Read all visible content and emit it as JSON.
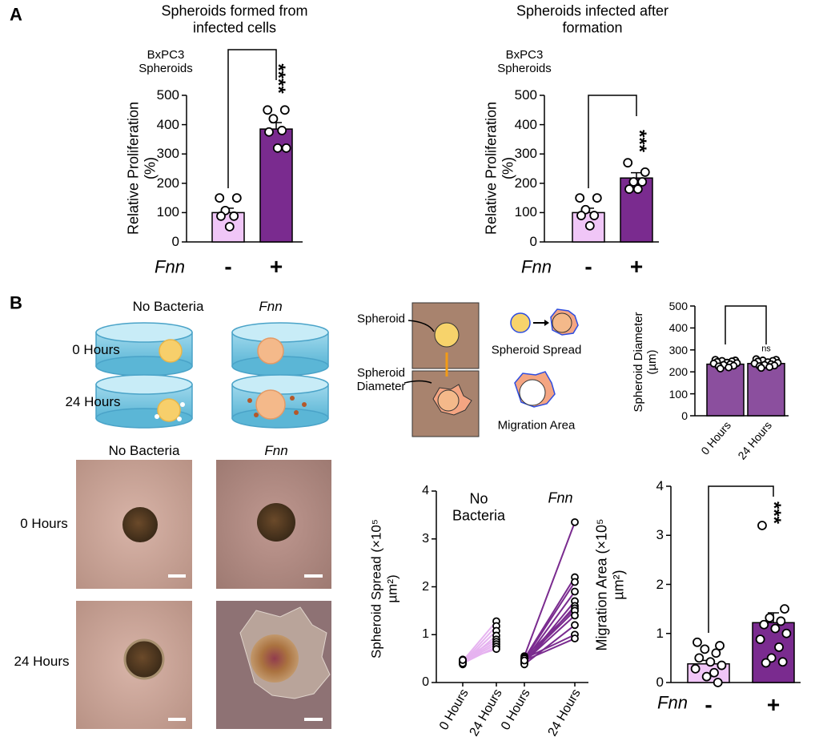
{
  "panel_labels": [
    "A",
    "B"
  ],
  "chart_data": [
    {
      "type": "bar",
      "title": "Spheroids formed from infected cells",
      "annotation": "BxPC3 Spheroids",
      "ylabel": "Relative Proliferation (%)",
      "xlabel": "Fnn",
      "categories": [
        "-",
        "+"
      ],
      "values": [
        100,
        385
      ],
      "errors": [
        15,
        22
      ],
      "colors": [
        "#f0c6f7",
        "#7a2b8f"
      ],
      "points": [
        [
          150,
          150,
          107,
          88,
          88,
          52
        ],
        [
          450,
          450,
          420,
          380,
          375,
          320,
          320
        ]
      ],
      "significance": "****",
      "ylim": [
        0,
        500
      ],
      "yticks": [
        0,
        100,
        200,
        300,
        400,
        500
      ]
    },
    {
      "type": "bar",
      "title": "Spheroids infected after formation",
      "annotation": "BxPC3 Spheroids",
      "ylabel": "Relative Proliferation (%)",
      "xlabel": "Fnn",
      "categories": [
        "-",
        "+"
      ],
      "values": [
        100,
        218
      ],
      "errors": [
        15,
        18
      ],
      "colors": [
        "#f0c6f7",
        "#7a2b8f"
      ],
      "points": [
        [
          150,
          150,
          110,
          90,
          90,
          55
        ],
        [
          270,
          238,
          205,
          205,
          180,
          180
        ]
      ],
      "significance": "***",
      "ylim": [
        0,
        500
      ],
      "yticks": [
        0,
        100,
        200,
        300,
        400,
        500
      ]
    },
    {
      "type": "bar",
      "ylabel": "Spheroid Diameter (µm)",
      "categories": [
        "0 Hours",
        "24 Hours"
      ],
      "values": [
        235,
        238
      ],
      "errors": [
        5,
        5
      ],
      "colors": [
        "#8b4f9e",
        "#8b4f9e"
      ],
      "points": [
        [
          255,
          252,
          250,
          248,
          245,
          242,
          240,
          238,
          235,
          232,
          228,
          225,
          220,
          215
        ],
        [
          258,
          255,
          252,
          250,
          247,
          244,
          241,
          238,
          235,
          232,
          229,
          226,
          222,
          218
        ]
      ],
      "significance": "ns",
      "ylim": [
        0,
        500
      ],
      "yticks": [
        0,
        100,
        200,
        300,
        400,
        500
      ]
    },
    {
      "type": "paired",
      "ylabel": "Spheroid Spread (×10⁵ µm²)",
      "categories": [
        "0 Hours",
        "24 Hours",
        "0 Hours",
        "24 Hours"
      ],
      "series": [
        {
          "name": "No Bacteria",
          "color": "#e6b3f0",
          "values": [
            [
              0.45,
              0.42,
              0.4,
              0.38,
              0.48,
              0.45,
              0.43,
              0.4,
              0.47
            ],
            [
              1.28,
              1.18,
              1.08,
              0.98,
              0.9,
              0.85,
              0.8,
              0.75,
              0.7
            ]
          ]
        },
        {
          "name": "Fnn",
          "color": "#7a2b8f",
          "values": [
            [
              0.55,
              0.5,
              0.48,
              0.45,
              0.42,
              0.4,
              0.52,
              0.47,
              0.44,
              0.38,
              0.5,
              0.46
            ],
            [
              3.35,
              2.2,
              2.1,
              1.9,
              1.7,
              1.6,
              1.55,
              1.5,
              1.4,
              1.2,
              1.0,
              0.92
            ]
          ]
        }
      ],
      "ylim": [
        0,
        4
      ],
      "yticks": [
        0,
        1,
        2,
        3,
        4
      ]
    },
    {
      "type": "bar",
      "ylabel": "Migration Area (×10⁵ µm²)",
      "xlabel": "Fnn",
      "categories": [
        "-",
        "+"
      ],
      "values": [
        0.38,
        1.22
      ],
      "errors": [
        0.07,
        0.2
      ],
      "colors": [
        "#f0c6f7",
        "#7a2b8f"
      ],
      "points": [
        [
          0.82,
          0.75,
          0.68,
          0.6,
          0.5,
          0.42,
          0.35,
          0.28,
          0.2,
          0.12,
          0.0
        ],
        [
          3.2,
          1.5,
          1.32,
          1.25,
          1.18,
          1.1,
          1.0,
          0.88,
          0.72,
          0.5,
          0.42,
          0.4
        ]
      ],
      "significance": "***",
      "ylim": [
        0,
        4
      ],
      "yticks": [
        0,
        1,
        2,
        3,
        4
      ]
    }
  ],
  "schematic": {
    "columns": [
      "No Bacteria",
      "Fnn"
    ],
    "rows": [
      "0 Hours",
      "24 Hours"
    ],
    "labels": {
      "spheroid": "Spheroid",
      "diameter": "Spheroid Diameter",
      "spread": "Spheroid Spread",
      "migration": "Migration Area"
    }
  },
  "micrographs": {
    "columns": [
      "No Bacteria",
      "Fnn"
    ],
    "rows": [
      "0 Hours",
      "24 Hours"
    ]
  }
}
